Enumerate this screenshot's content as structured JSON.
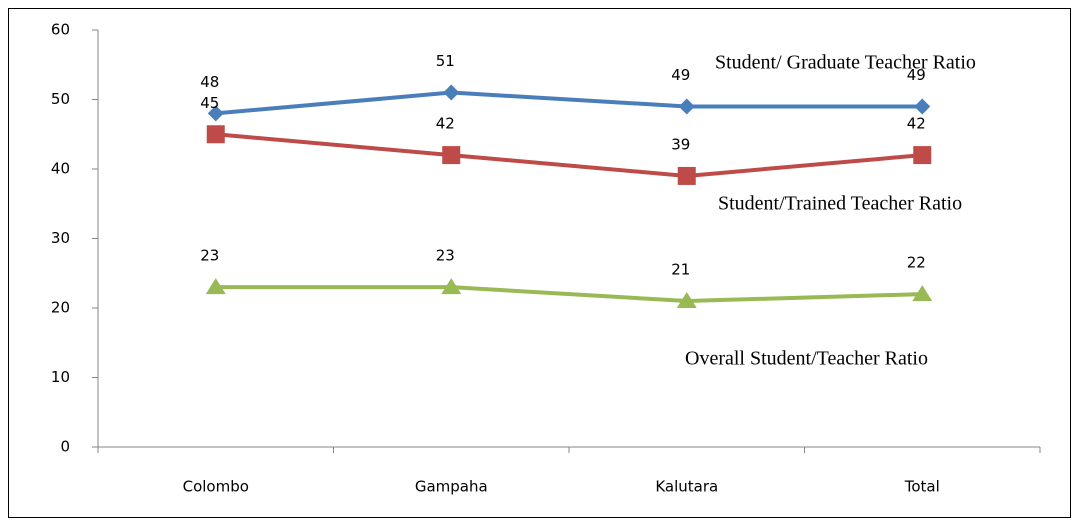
{
  "chart_data": {
    "type": "line",
    "categories": [
      "Colombo",
      "Gampaha",
      "Kalutara",
      "Total"
    ],
    "series": [
      {
        "name": "Student/ Graduate Teacher Ratio",
        "color": "#4a7ebb",
        "marker": "diamond",
        "values": [
          48,
          51,
          49,
          49
        ]
      },
      {
        "name": "Student/Trained Teacher Ratio",
        "color": "#be4b48",
        "marker": "square",
        "values": [
          45,
          42,
          39,
          42
        ]
      },
      {
        "name": "Overall Student/Teacher Ratio",
        "color": "#98b954",
        "marker": "triangle",
        "values": [
          23,
          23,
          21,
          22
        ]
      }
    ],
    "ylim": [
      0,
      60
    ],
    "yticks": [
      0,
      10,
      20,
      30,
      40,
      50,
      60
    ],
    "grid": false
  }
}
